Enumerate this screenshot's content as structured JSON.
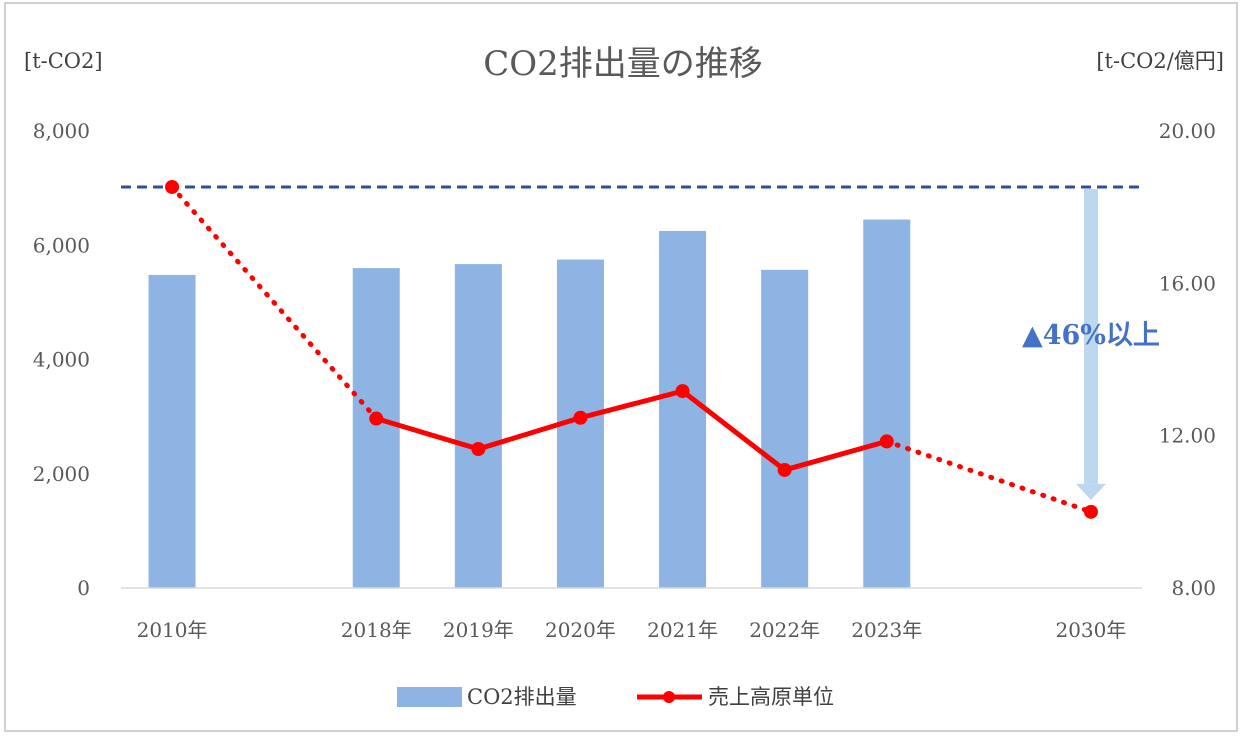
{
  "chart_data": {
    "type": "bar",
    "title": "CO2排出量の推移",
    "y_left_unit": "[t-CO2]",
    "y_right_unit": "[t-CO2/億円]",
    "categories": [
      "2010年",
      "2018年",
      "2019年",
      "2020年",
      "2021年",
      "2022年",
      "2023年",
      "2030年"
    ],
    "y_left_lim": [
      0,
      8000
    ],
    "y_left_ticks": [
      "0",
      "2,000",
      "4,000",
      "6,000",
      "8,000"
    ],
    "y_right_lim": [
      8,
      20
    ],
    "y_right_ticks": [
      "8.00",
      "12.00",
      "16.00",
      "20.00"
    ],
    "series": [
      {
        "name": "CO2排出量",
        "type": "bar",
        "axis": "left",
        "color": "#8eb4e3",
        "values": [
          5480,
          5600,
          5670,
          5750,
          6250,
          5570,
          6450,
          null
        ]
      },
      {
        "name": "売上高原単位",
        "type": "line",
        "axis": "right",
        "color": "#ff0000",
        "values": [
          18.53,
          12.45,
          11.65,
          12.47,
          13.17,
          11.1,
          11.85,
          10.0
        ]
      }
    ],
    "reference_line": {
      "axis": "right",
      "value": 18.53,
      "color": "#2f4f9b",
      "style": "dashed"
    },
    "annotation": {
      "text": "▲46%以上",
      "color": "#4472c4"
    },
    "legend": {
      "position": "bottom"
    },
    "grid": false
  }
}
